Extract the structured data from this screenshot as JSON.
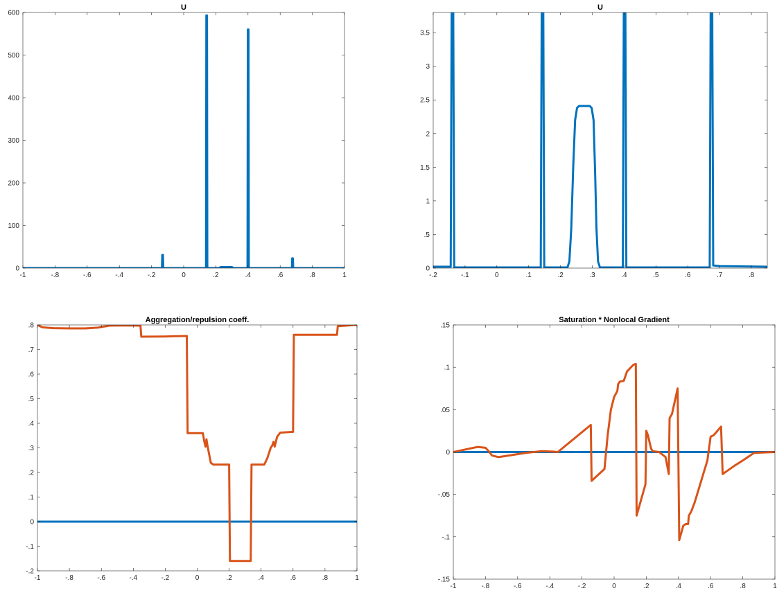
{
  "figure": {
    "colors": {
      "blue": "#0072BD",
      "orange": "#D95319",
      "axis": "#262626"
    }
  },
  "chart_data": [
    {
      "type": "line",
      "title": "U",
      "xlim": [
        -1,
        1
      ],
      "ylim": [
        0,
        600
      ],
      "xticks": [
        -1,
        -0.8,
        -0.6,
        -0.4,
        -0.2,
        0,
        0.2,
        0.4,
        0.6,
        0.8,
        1
      ],
      "yticks": [
        0,
        100,
        200,
        300,
        400,
        500,
        600
      ],
      "grid": false,
      "series": [
        {
          "color": "#0072BD",
          "points": [
            [
              -1,
              0
            ],
            [
              -0.135,
              0
            ],
            [
              -0.133,
              31
            ],
            [
              -0.129,
              31
            ],
            [
              -0.127,
              0
            ],
            [
              0.139,
              0
            ],
            [
              0.141,
              593
            ],
            [
              0.145,
              593
            ],
            [
              0.147,
              0
            ],
            [
              0.22,
              0
            ],
            [
              0.23,
              2.4
            ],
            [
              0.3,
              2.4
            ],
            [
              0.31,
              0
            ],
            [
              0.397,
              0
            ],
            [
              0.399,
              560
            ],
            [
              0.403,
              560
            ],
            [
              0.405,
              0
            ],
            [
              0.673,
              0
            ],
            [
              0.675,
              23
            ],
            [
              0.679,
              23
            ],
            [
              0.681,
              0
            ],
            [
              1,
              0
            ]
          ]
        }
      ]
    },
    {
      "type": "line",
      "title": "U",
      "xlim": [
        -0.2,
        0.85
      ],
      "ylim": [
        0,
        3.8
      ],
      "xticks": [
        -0.2,
        -0.1,
        0,
        0.1,
        0.2,
        0.3,
        0.4,
        0.5,
        0.6,
        0.7,
        0.8
      ],
      "yticks": [
        0,
        0.5,
        1,
        1.5,
        2,
        2.5,
        3,
        3.5
      ],
      "grid": false,
      "series": [
        {
          "color": "#0072BD",
          "points": [
            [
              -0.2,
              0.02
            ],
            [
              -0.145,
              0.02
            ],
            [
              -0.142,
              3.8
            ],
            [
              -0.137,
              3.8
            ],
            [
              -0.134,
              0.01
            ],
            [
              0.138,
              0.01
            ],
            [
              0.141,
              3.8
            ],
            [
              0.146,
              3.8
            ],
            [
              0.149,
              0.01
            ],
            [
              0.222,
              0.01
            ],
            [
              0.228,
              0.1
            ],
            [
              0.234,
              0.6
            ],
            [
              0.24,
              1.5
            ],
            [
              0.246,
              2.2
            ],
            [
              0.252,
              2.38
            ],
            [
              0.258,
              2.41
            ],
            [
              0.292,
              2.41
            ],
            [
              0.298,
              2.38
            ],
            [
              0.304,
              2.2
            ],
            [
              0.309,
              1.4
            ],
            [
              0.313,
              0.6
            ],
            [
              0.318,
              0.1
            ],
            [
              0.324,
              0.01
            ],
            [
              0.396,
              0.01
            ],
            [
              0.399,
              3.8
            ],
            [
              0.404,
              3.8
            ],
            [
              0.407,
              0.01
            ],
            [
              0.669,
              0.01
            ],
            [
              0.672,
              3.8
            ],
            [
              0.677,
              3.8
            ],
            [
              0.68,
              0.04
            ],
            [
              0.7,
              0.03
            ],
            [
              0.85,
              0.02
            ]
          ]
        }
      ]
    },
    {
      "type": "line",
      "title": "Aggregation/repulsion coeff.",
      "xlim": [
        -1,
        1
      ],
      "ylim": [
        -0.2,
        0.8
      ],
      "xticks": [
        -1,
        -0.8,
        -0.6,
        -0.4,
        -0.2,
        0,
        0.2,
        0.4,
        0.6,
        0.8,
        1
      ],
      "yticks": [
        -0.2,
        -0.1,
        0,
        0.1,
        0.2,
        0.3,
        0.4,
        0.5,
        0.6,
        0.7,
        0.8
      ],
      "grid": false,
      "series": [
        {
          "color": "#0072BD",
          "points": [
            [
              -1,
              0
            ],
            [
              1,
              0
            ]
          ]
        },
        {
          "color": "#D95319",
          "points": [
            [
              -1,
              0.8
            ],
            [
              -0.97,
              0.79
            ],
            [
              -0.9,
              0.787
            ],
            [
              -0.8,
              0.786
            ],
            [
              -0.7,
              0.786
            ],
            [
              -0.62,
              0.789
            ],
            [
              -0.55,
              0.797
            ],
            [
              -0.45,
              0.798
            ],
            [
              -0.36,
              0.797
            ],
            [
              -0.355,
              0.797
            ],
            [
              -0.35,
              0.752
            ],
            [
              -0.2,
              0.753
            ],
            [
              -0.07,
              0.755
            ],
            [
              -0.065,
              0.755
            ],
            [
              -0.06,
              0.36
            ],
            [
              0.02,
              0.36
            ],
            [
              0.035,
              0.36
            ],
            [
              0.045,
              0.325
            ],
            [
              0.052,
              0.305
            ],
            [
              0.058,
              0.335
            ],
            [
              0.064,
              0.31
            ],
            [
              0.085,
              0.24
            ],
            [
              0.1,
              0.232
            ],
            [
              0.17,
              0.232
            ],
            [
              0.195,
              0.232
            ],
            [
              0.2,
              0.232
            ],
            [
              0.205,
              -0.16
            ],
            [
              0.335,
              -0.16
            ],
            [
              0.34,
              0.232
            ],
            [
              0.42,
              0.232
            ],
            [
              0.44,
              0.26
            ],
            [
              0.46,
              0.3
            ],
            [
              0.47,
              0.31
            ],
            [
              0.478,
              0.325
            ],
            [
              0.485,
              0.305
            ],
            [
              0.5,
              0.345
            ],
            [
              0.52,
              0.362
            ],
            [
              0.6,
              0.365
            ],
            [
              0.605,
              0.76
            ],
            [
              0.7,
              0.76
            ],
            [
              0.875,
              0.76
            ],
            [
              0.88,
              0.795
            ],
            [
              0.95,
              0.798
            ],
            [
              1,
              0.8
            ]
          ]
        }
      ]
    },
    {
      "type": "line",
      "title": "Saturation * Nonlocal Gradient",
      "xlim": [
        -1,
        1
      ],
      "ylim": [
        -0.15,
        0.15
      ],
      "xticks": [
        -1,
        -0.8,
        -0.6,
        -0.4,
        -0.2,
        0,
        0.2,
        0.4,
        0.6,
        0.8,
        1
      ],
      "yticks": [
        -0.15,
        -0.1,
        -0.05,
        0,
        0.05,
        0.1,
        0.15
      ],
      "grid": false,
      "series": [
        {
          "color": "#0072BD",
          "points": [
            [
              -1,
              0
            ],
            [
              1,
              0
            ]
          ]
        },
        {
          "color": "#D95319",
          "points": [
            [
              -1,
              0
            ],
            [
              -0.95,
              0.002
            ],
            [
              -0.9,
              0.004
            ],
            [
              -0.85,
              0.006
            ],
            [
              -0.8,
              0.005
            ],
            [
              -0.78,
              0.001
            ],
            [
              -0.76,
              -0.004
            ],
            [
              -0.72,
              -0.006
            ],
            [
              -0.65,
              -0.004
            ],
            [
              -0.55,
              -0.001
            ],
            [
              -0.45,
              0.001
            ],
            [
              -0.38,
              0.0005
            ],
            [
              -0.35,
              0
            ],
            [
              -0.145,
              0.032
            ],
            [
              -0.14,
              -0.034
            ],
            [
              -0.06,
              -0.02
            ],
            [
              -0.055,
              -0.01
            ],
            [
              -0.04,
              0.02
            ],
            [
              -0.02,
              0.05
            ],
            [
              0,
              0.065
            ],
            [
              0.02,
              0.072
            ],
            [
              0.025,
              0.08
            ],
            [
              0.035,
              0.083
            ],
            [
              0.06,
              0.084
            ],
            [
              0.08,
              0.095
            ],
            [
              0.12,
              0.103
            ],
            [
              0.135,
              0.104
            ],
            [
              0.14,
              -0.075
            ],
            [
              0.195,
              -0.038
            ],
            [
              0.2,
              0.025
            ],
            [
              0.21,
              0.02
            ],
            [
              0.23,
              0.004
            ],
            [
              0.24,
              0.001
            ],
            [
              0.28,
              0
            ],
            [
              0.32,
              -0.006
            ],
            [
              0.34,
              -0.026
            ],
            [
              0.345,
              0.04
            ],
            [
              0.36,
              0.045
            ],
            [
              0.395,
              0.075
            ],
            [
              0.405,
              -0.104
            ],
            [
              0.43,
              -0.087
            ],
            [
              0.445,
              -0.085
            ],
            [
              0.46,
              -0.085
            ],
            [
              0.465,
              -0.075
            ],
            [
              0.48,
              -0.07
            ],
            [
              0.5,
              -0.06
            ],
            [
              0.58,
              -0.01
            ],
            [
              0.6,
              0.018
            ],
            [
              0.62,
              0.02
            ],
            [
              0.665,
              0.03
            ],
            [
              0.675,
              -0.026
            ],
            [
              0.75,
              -0.016
            ],
            [
              0.8,
              -0.01
            ],
            [
              0.87,
              -0.001
            ],
            [
              1,
              0
            ]
          ]
        }
      ]
    }
  ]
}
